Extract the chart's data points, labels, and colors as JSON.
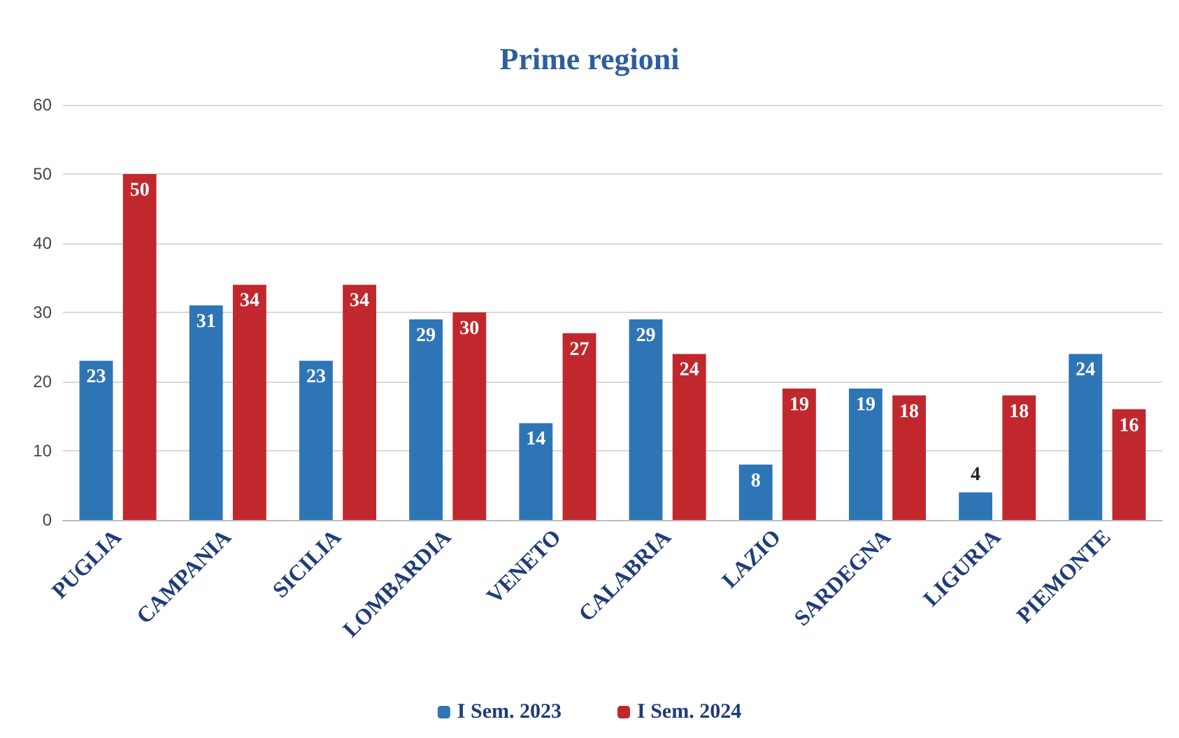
{
  "chart_data": {
    "type": "bar",
    "title": "Prime regioni",
    "categories": [
      "PUGLIA",
      "CAMPANIA",
      "SICILIA",
      "LOMBARDIA",
      "VENETO",
      "CALABRIA",
      "LAZIO",
      "SARDEGNA",
      "LIGURIA",
      "PIEMONTE"
    ],
    "series": [
      {
        "name": "I Sem. 2023",
        "color": "#2e75b6",
        "values": [
          23,
          31,
          23,
          29,
          14,
          29,
          8,
          19,
          4,
          24
        ]
      },
      {
        "name": "I Sem. 2024",
        "color": "#c0282d",
        "values": [
          50,
          34,
          34,
          30,
          27,
          24,
          19,
          18,
          18,
          16
        ]
      }
    ],
    "ylim": [
      0,
      60
    ],
    "yticks": [
      0,
      10,
      20,
      30,
      40,
      50,
      60
    ],
    "grid": "y",
    "legend": "bottom",
    "data_labels": true
  }
}
